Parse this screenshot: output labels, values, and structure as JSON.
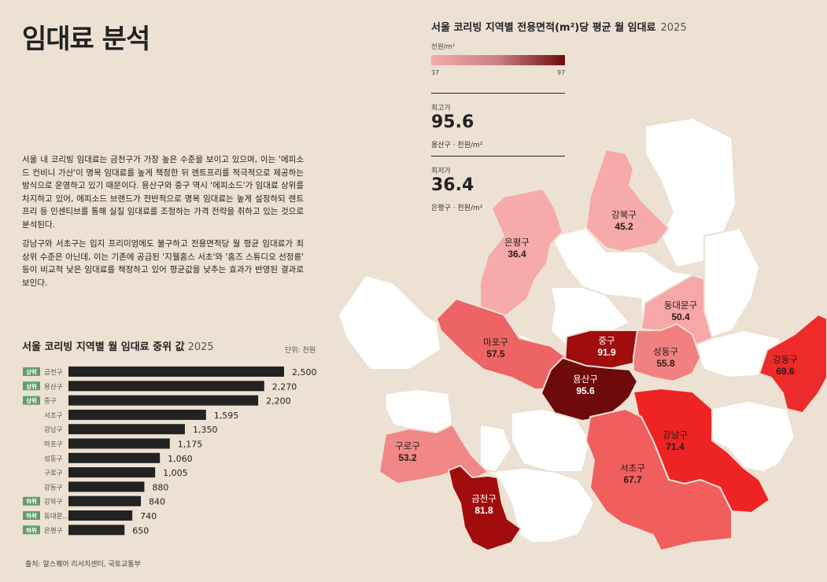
{
  "page_title": "임대료 분석",
  "description": [
    "서울 내 코리빙 임대료는 금천구가 가장 높은 수준을 보이고 있으며, 이는 '에피소드 컨비니 가산'이 명목 임대료를 높게 책정한 뒤 렌트프리를 적극적으로 제공하는 방식으로 운영하고 있기 때문이다. 용산구와 중구 역시 '에피소드'가 임대료 상위를 차지하고 있어, 에피소드 브랜드가 전반적으로 명목 임대료는 높게 설정하되 렌트프리 등 인센티브를 통해 실질 임대료를 조정하는 가격 전략을 취하고 있는 것으로 분석된다.",
    "강남구와 서초구는 입지 프리미엄에도 불구하고 전용면적당 월 평균 임대료가 최상위 수준은 아닌데, 이는 기존에 공급된 '지웰홈스 서초'와 '홈즈 스튜디오 선정릉' 등이 비교적 낮은 임대료를 책정하고 있어 평균값을 낮추는 효과가 반영된 결과로 보인다."
  ],
  "bar_section": {
    "title": "서울 코리빙 지역별 월 임대료 중위 값",
    "year": "2025",
    "unit": "단위: 천원"
  },
  "source": "출처: 알스퀘어 리서치센터, 국토교통부",
  "map_section": {
    "title": "서울 코리빙 지역별 전용면적(m²)당 평균 월 임대료",
    "year": "2025",
    "legend_unit": "천원/m²",
    "legend_min": "37",
    "legend_max": "97",
    "max_label": "최고가",
    "max_value": "95.6",
    "max_sub": "용산구 · 천원/m²",
    "min_label": "최저가",
    "min_value": "36.4",
    "min_sub": "은평구 · 천원/m²"
  },
  "colors": {
    "bar": "#222222",
    "badge": "#5f9e6a",
    "background": "#ede1d4",
    "legend_low": "#f6aaaa",
    "legend_high": "#6e0a0a"
  },
  "chart_data": [
    {
      "type": "bar",
      "orientation": "horizontal",
      "title": "서울 코리빙 지역별 월 임대료 중위 값",
      "categories": [
        "금천구",
        "용산구",
        "중구",
        "서초구",
        "강남구",
        "마포구",
        "성동구",
        "구로구",
        "강동구",
        "강북구",
        "동대문...",
        "은평구"
      ],
      "values": [
        2500,
        2270,
        2200,
        1595,
        1350,
        1175,
        1060,
        1005,
        880,
        840,
        740,
        650
      ],
      "value_labels": [
        "2,500",
        "2,270",
        "2,200",
        "1,595",
        "1,350",
        "1,175",
        "1,060",
        "1,005",
        "880",
        "840",
        "740",
        "650"
      ],
      "badges": [
        "상위",
        "상위",
        "상위",
        "",
        "",
        "",
        "",
        "",
        "",
        "하위",
        "하위",
        "하위"
      ],
      "xlim": [
        0,
        2500
      ]
    },
    {
      "type": "choropleth",
      "title": "서울 코리빙 지역별 전용면적(m²)당 평균 월 임대료",
      "color_range": [
        37,
        97
      ],
      "regions": [
        {
          "name": "은평구",
          "value": 36.4,
          "value_label": "36.4"
        },
        {
          "name": "강북구",
          "value": 45.2,
          "value_label": "45.2"
        },
        {
          "name": "동대문구",
          "value": 50.4,
          "value_label": "50.4"
        },
        {
          "name": "마포구",
          "value": 57.5,
          "value_label": "57.5"
        },
        {
          "name": "중구",
          "value": 91.9,
          "value_label": "91.9"
        },
        {
          "name": "성동구",
          "value": 55.8,
          "value_label": "55.8"
        },
        {
          "name": "용산구",
          "value": 95.6,
          "value_label": "95.6"
        },
        {
          "name": "강동구",
          "value": 69.6,
          "value_label": "69.6"
        },
        {
          "name": "구로구",
          "value": 53.2,
          "value_label": "53.2"
        },
        {
          "name": "강남구",
          "value": 71.4,
          "value_label": "71.4"
        },
        {
          "name": "서초구",
          "value": 67.7,
          "value_label": "67.7"
        },
        {
          "name": "금천구",
          "value": 81.8,
          "value_label": "81.8"
        }
      ]
    }
  ]
}
